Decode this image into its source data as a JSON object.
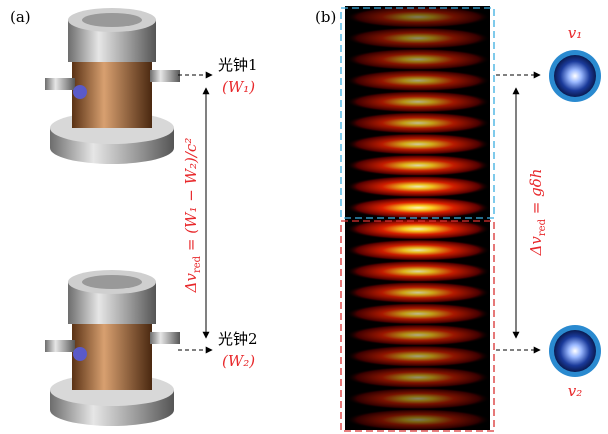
{
  "panel_a": {
    "label": "(a)",
    "clock_1": {
      "name": "光钟1",
      "potential": "(W₁)"
    },
    "clock_2": {
      "name": "光钟2",
      "potential": "(W₂)"
    },
    "formula": {
      "lead": "Δv",
      "sub": "red",
      "rest": " = (W₁ − W₂)/c²"
    }
  },
  "panel_b": {
    "label": "(b)",
    "freq_top": "v₁",
    "freq_bottom": "v₂",
    "formula": {
      "lead": "Δv",
      "sub": "red",
      "rest": " = gδh"
    }
  }
}
